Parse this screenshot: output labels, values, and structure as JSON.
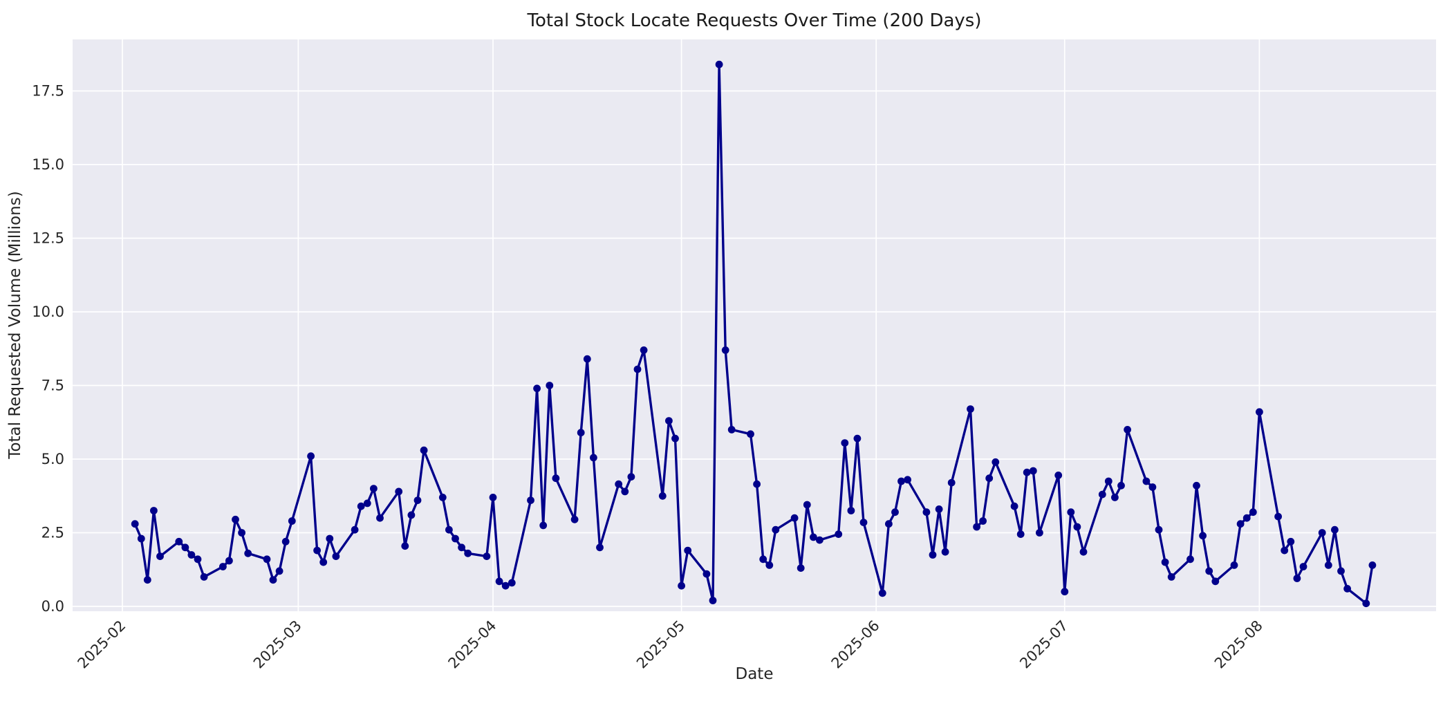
{
  "chart_data": {
    "type": "line",
    "title": "Total Stock Locate Requests Over Time (200 Days)",
    "xlabel": "Date",
    "ylabel": "Total Requested Volume (Millions)",
    "x_tick_labels": [
      "2025-02",
      "2025-03",
      "2025-04",
      "2025-05",
      "2025-06",
      "2025-07",
      "2025-08"
    ],
    "y_ticks": [
      0.0,
      2.5,
      5.0,
      7.5,
      10.0,
      12.5,
      15.0,
      17.5
    ],
    "y_tick_labels": [
      "0.0",
      "2.5",
      "5.0",
      "7.5",
      "10.0",
      "12.5",
      "15.0",
      "17.5"
    ],
    "ylim": [
      -0.2,
      19.3
    ],
    "grid": true,
    "legend_position": "none",
    "colors": {
      "line": "#00008B",
      "marker": "#00008B",
      "plot_background": "#EAEAF2",
      "gridline": "#FFFFFF",
      "text": "#262626"
    },
    "series": [
      {
        "name": "total-stock-locate-requests",
        "dates": [
          "2025-02-03",
          "2025-02-04",
          "2025-02-05",
          "2025-02-06",
          "2025-02-07",
          "2025-02-10",
          "2025-02-11",
          "2025-02-12",
          "2025-02-13",
          "2025-02-14",
          "2025-02-17",
          "2025-02-18",
          "2025-02-19",
          "2025-02-20",
          "2025-02-21",
          "2025-02-24",
          "2025-02-25",
          "2025-02-26",
          "2025-02-27",
          "2025-02-28",
          "2025-03-03",
          "2025-03-04",
          "2025-03-05",
          "2025-03-06",
          "2025-03-07",
          "2025-03-10",
          "2025-03-11",
          "2025-03-12",
          "2025-03-13",
          "2025-03-14",
          "2025-03-17",
          "2025-03-18",
          "2025-03-19",
          "2025-03-20",
          "2025-03-21",
          "2025-03-24",
          "2025-03-25",
          "2025-03-26",
          "2025-03-27",
          "2025-03-28",
          "2025-03-31",
          "2025-04-01",
          "2025-04-02",
          "2025-04-03",
          "2025-04-04",
          "2025-04-07",
          "2025-04-08",
          "2025-04-09",
          "2025-04-10",
          "2025-04-11",
          "2025-04-14",
          "2025-04-15",
          "2025-04-16",
          "2025-04-17",
          "2025-04-18",
          "2025-04-21",
          "2025-04-22",
          "2025-04-23",
          "2025-04-24",
          "2025-04-25",
          "2025-04-28",
          "2025-04-29",
          "2025-04-30",
          "2025-05-01",
          "2025-05-02",
          "2025-05-05",
          "2025-05-06",
          "2025-05-07",
          "2025-05-08",
          "2025-05-09",
          "2025-05-12",
          "2025-05-13",
          "2025-05-14",
          "2025-05-15",
          "2025-05-16",
          "2025-05-19",
          "2025-05-20",
          "2025-05-21",
          "2025-05-22",
          "2025-05-23",
          "2025-05-26",
          "2025-05-27",
          "2025-05-28",
          "2025-05-29",
          "2025-05-30",
          "2025-06-02",
          "2025-06-03",
          "2025-06-04",
          "2025-06-05",
          "2025-06-06",
          "2025-06-09",
          "2025-06-10",
          "2025-06-11",
          "2025-06-12",
          "2025-06-13",
          "2025-06-16",
          "2025-06-17",
          "2025-06-18",
          "2025-06-19",
          "2025-06-20",
          "2025-06-23",
          "2025-06-24",
          "2025-06-25",
          "2025-06-26",
          "2025-06-27",
          "2025-06-30",
          "2025-07-01",
          "2025-07-02",
          "2025-07-03",
          "2025-07-04",
          "2025-07-07",
          "2025-07-08",
          "2025-07-09",
          "2025-07-10",
          "2025-07-11",
          "2025-07-14",
          "2025-07-15",
          "2025-07-16",
          "2025-07-17",
          "2025-07-18",
          "2025-07-21",
          "2025-07-22",
          "2025-07-23",
          "2025-07-24",
          "2025-07-25",
          "2025-07-28",
          "2025-07-29",
          "2025-07-30",
          "2025-07-31",
          "2025-08-01",
          "2025-08-04",
          "2025-08-05",
          "2025-08-06",
          "2025-08-07",
          "2025-08-08",
          "2025-08-11",
          "2025-08-12",
          "2025-08-13",
          "2025-08-14",
          "2025-08-15",
          "2025-08-18",
          "2025-08-19"
        ],
        "values": [
          2.8,
          2.3,
          0.9,
          3.25,
          1.7,
          2.2,
          2.0,
          1.75,
          1.6,
          1.0,
          1.35,
          1.55,
          2.95,
          2.5,
          1.8,
          1.6,
          0.9,
          1.2,
          2.2,
          2.9,
          5.1,
          1.9,
          1.5,
          2.3,
          1.7,
          2.6,
          3.4,
          3.5,
          4.0,
          3.0,
          3.9,
          2.05,
          3.1,
          3.6,
          5.3,
          3.7,
          2.6,
          2.3,
          2.0,
          1.8,
          1.7,
          3.7,
          0.85,
          0.7,
          0.8,
          3.6,
          7.4,
          2.75,
          7.5,
          4.35,
          2.95,
          5.9,
          8.4,
          5.05,
          2.0,
          4.15,
          3.9,
          4.4,
          8.05,
          8.7,
          3.75,
          6.3,
          5.7,
          0.7,
          1.9,
          1.1,
          0.2,
          18.4,
          8.7,
          6.0,
          5.85,
          4.15,
          1.6,
          1.4,
          2.6,
          3.0,
          1.3,
          3.45,
          2.35,
          2.25,
          2.45,
          5.55,
          3.25,
          5.7,
          2.85,
          0.45,
          2.8,
          3.2,
          4.25,
          4.3,
          3.2,
          1.75,
          3.3,
          1.85,
          4.2,
          6.7,
          2.7,
          2.9,
          4.35,
          4.9,
          3.4,
          2.45,
          4.55,
          4.6,
          2.5,
          4.45,
          0.5,
          3.2,
          2.7,
          1.85,
          3.8,
          4.25,
          3.7,
          4.1,
          6.0,
          4.25,
          4.05,
          2.6,
          1.5,
          1.0,
          1.6,
          4.1,
          2.4,
          1.2,
          0.85,
          1.4,
          2.8,
          3.0,
          3.2,
          6.6,
          3.05,
          1.9,
          2.2,
          0.95,
          1.35,
          2.5,
          1.4,
          2.6,
          1.2,
          0.6,
          0.1,
          1.4
        ]
      }
    ]
  }
}
